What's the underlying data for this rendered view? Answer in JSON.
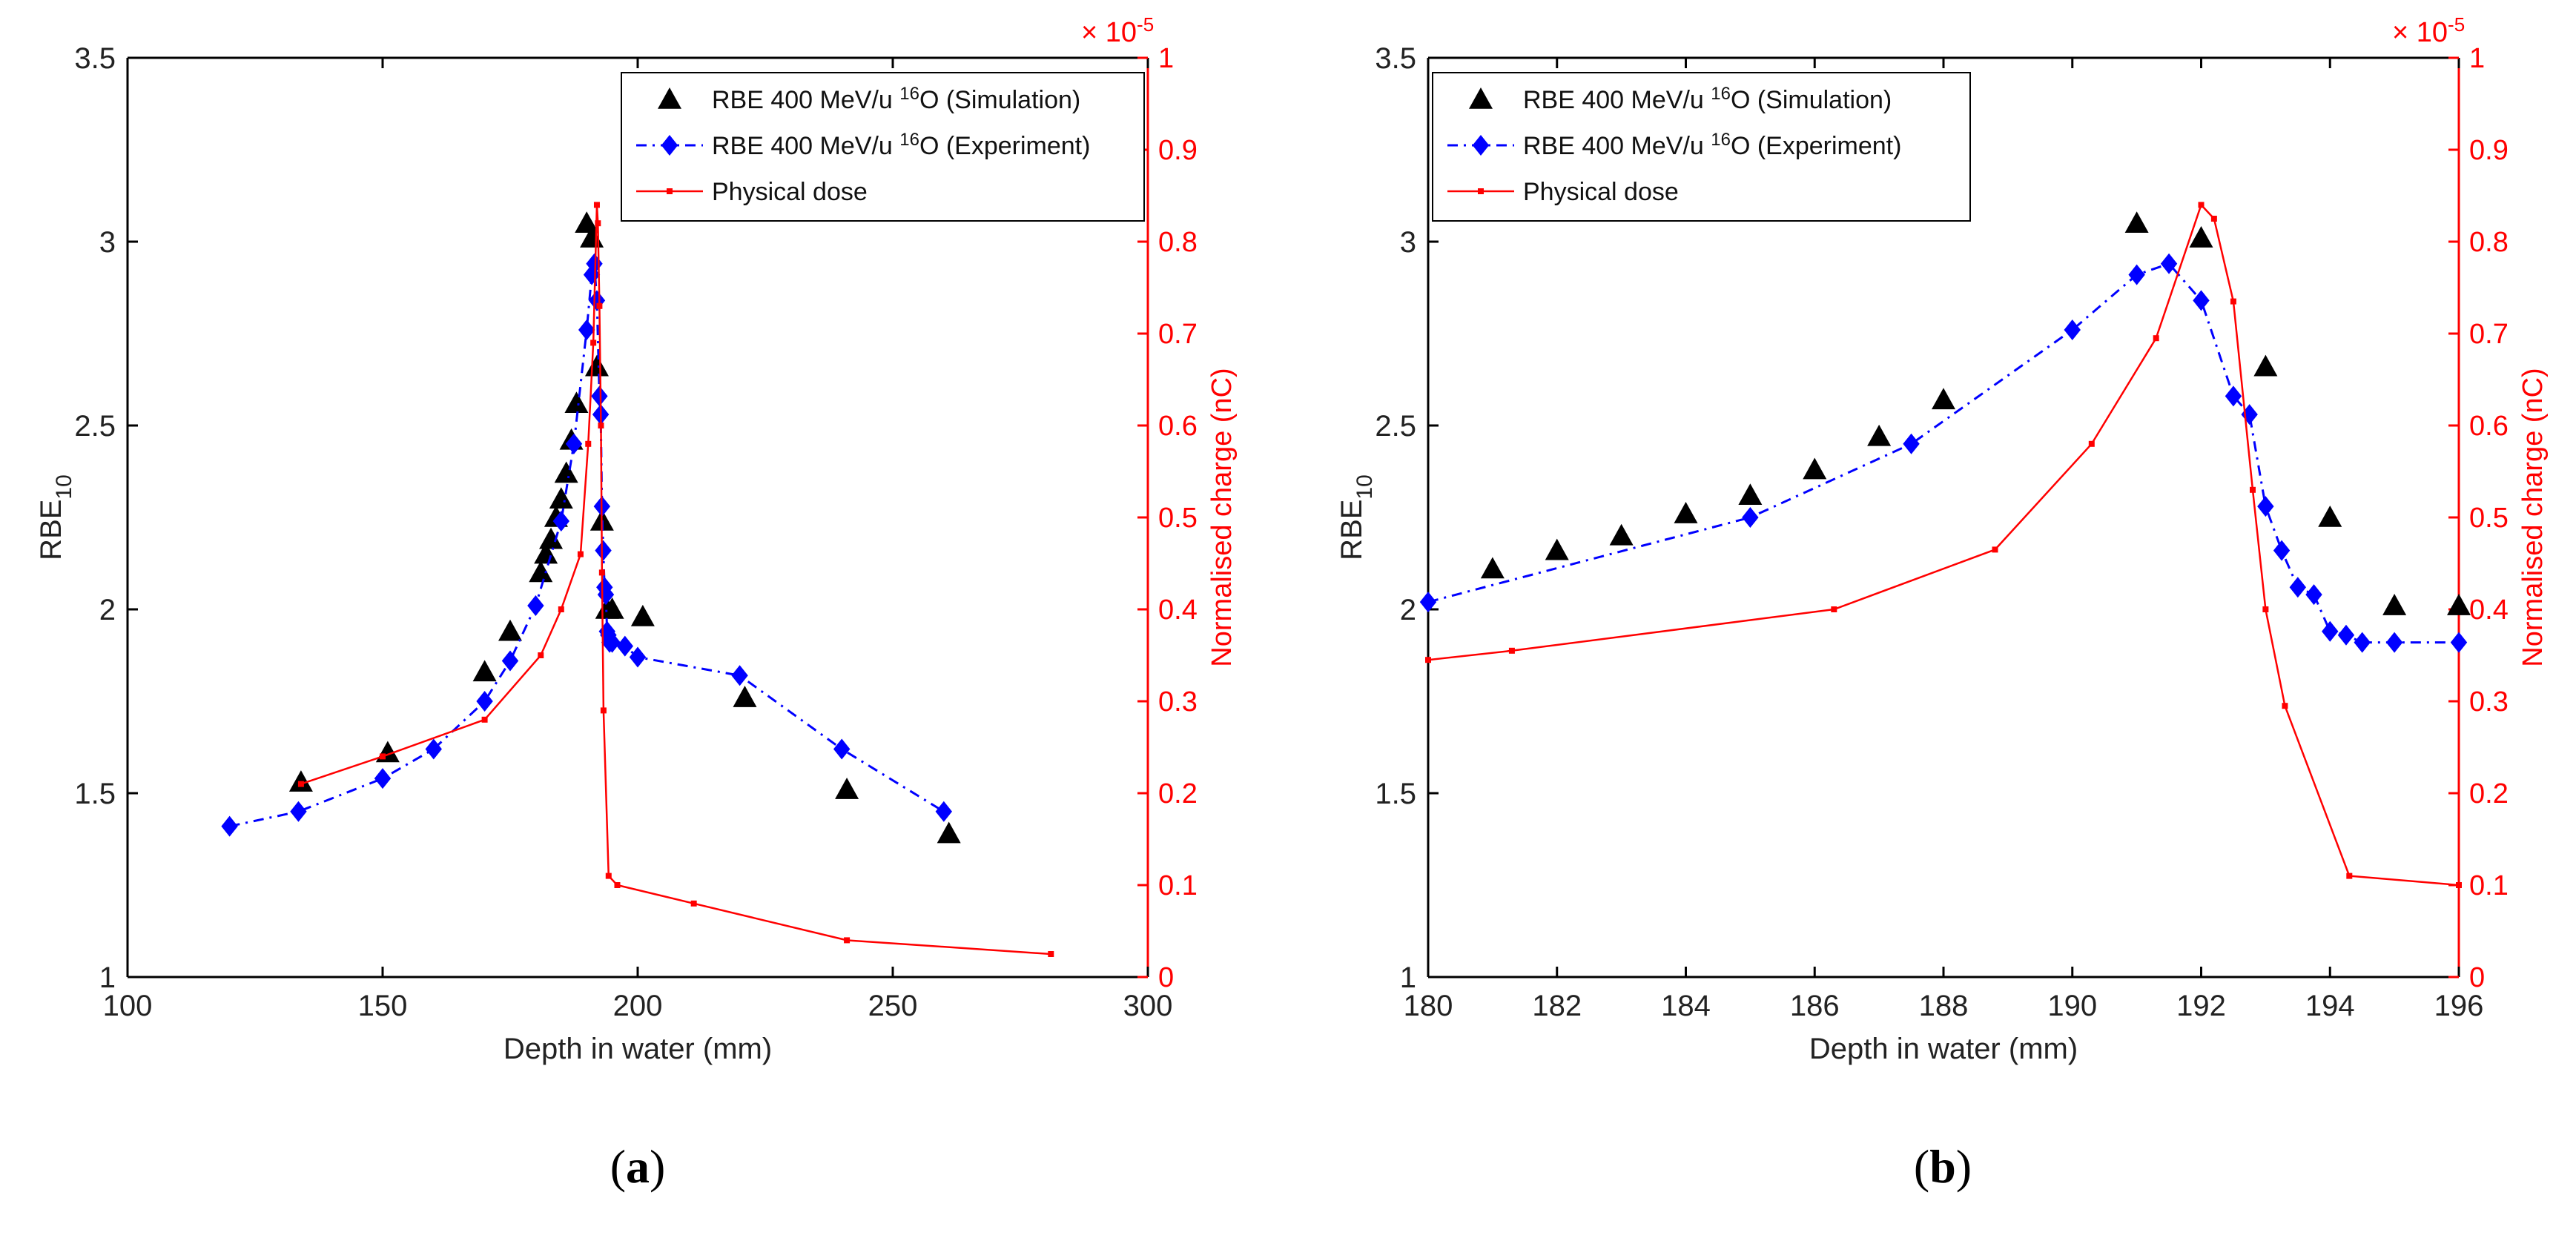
{
  "chart_data": [
    {
      "id": "a",
      "type": "line",
      "caption": "(a)",
      "xlabel": "Depth in water (mm)",
      "ylabel_main": "RBE",
      "ylabel_sub": "10",
      "y2label": "Normalised charge (nC)",
      "y2_exponent_base": "× 10",
      "y2_exponent": "-5",
      "xlim": [
        100,
        300
      ],
      "ylim": [
        1,
        3.5
      ],
      "y2lim": [
        0,
        1
      ],
      "xticks": [
        "100",
        "150",
        "200",
        "250",
        "300"
      ],
      "yticks": [
        "1",
        "1.5",
        "2",
        "2.5",
        "3",
        "3.5"
      ],
      "y2ticks": [
        "0",
        "0.1",
        "0.2",
        "0.3",
        "0.4",
        "0.5",
        "0.6",
        "0.7",
        "0.8",
        "0.9",
        "1"
      ],
      "legend": [
        {
          "text": "RBE 400 MeV/u ",
          "sup": "16",
          "text2": "O (Simulation)"
        },
        {
          "text": "RBE 400 MeV/u ",
          "sup": "16",
          "text2": "O (Experiment)"
        },
        {
          "text": "Physical dose",
          "sup": "",
          "text2": ""
        }
      ],
      "series": [
        {
          "name": "RBE 400 MeV/u 16O (Simulation)",
          "color": "#000000",
          "style": "triangle",
          "x": [
            134,
            151,
            170,
            175,
            181,
            182,
            183,
            184,
            185,
            186,
            187,
            188,
            190,
            191,
            192,
            193,
            194,
            195,
            201,
            221,
            241,
            261
          ],
          "y": [
            1.53,
            1.61,
            1.83,
            1.94,
            2.1,
            2.15,
            2.19,
            2.25,
            2.3,
            2.37,
            2.46,
            2.56,
            3.05,
            3.01,
            2.66,
            2.24,
            2.0,
            2.0,
            1.98,
            1.76,
            1.51,
            1.39
          ]
        },
        {
          "name": "RBE 400 MeV/u 16O (Experiment)",
          "color": "#0000ff",
          "style": "diamond-dashdot",
          "x": [
            120,
            133.5,
            150,
            160,
            170,
            175,
            180,
            185,
            187.5,
            190,
            191,
            191.5,
            192,
            192.5,
            192.75,
            193,
            193.25,
            193.5,
            193.75,
            194,
            194.25,
            194.5,
            195,
            197.5,
            200,
            220,
            240,
            260
          ],
          "y": [
            1.41,
            1.45,
            1.54,
            1.62,
            1.75,
            1.86,
            2.01,
            2.24,
            2.45,
            2.76,
            2.91,
            2.94,
            2.84,
            2.58,
            2.53,
            2.28,
            2.16,
            2.06,
            2.04,
            1.94,
            1.93,
            1.91,
            1.91,
            1.9,
            1.87,
            1.82,
            1.62,
            1.45
          ]
        },
        {
          "name": "Physical dose",
          "color": "#ff0000",
          "style": "line-dot",
          "axis": "y2",
          "x": [
            134,
            150,
            170,
            181,
            185,
            188.8,
            190.3,
            191.3,
            192,
            192.2,
            192.5,
            192.8,
            193.0,
            193.3,
            194.3,
            196,
            211,
            241,
            281
          ],
          "y": [
            0.21,
            0.24,
            0.28,
            0.35,
            0.4,
            0.46,
            0.58,
            0.69,
            0.84,
            0.82,
            0.73,
            0.6,
            0.44,
            0.29,
            0.11,
            0.1,
            0.08,
            0.04,
            0.025
          ]
        }
      ]
    },
    {
      "id": "b",
      "type": "line",
      "caption": "(b)",
      "xlabel": "Depth in water (mm)",
      "ylabel_main": "RBE",
      "ylabel_sub": "10",
      "y2label": "Normalised charge (nC)",
      "y2_exponent_base": "× 10",
      "y2_exponent": "-5",
      "xlim": [
        180,
        196
      ],
      "ylim": [
        1,
        3.5
      ],
      "y2lim": [
        0,
        1
      ],
      "xticks": [
        "180",
        "182",
        "184",
        "186",
        "188",
        "190",
        "192",
        "194",
        "196"
      ],
      "yticks": [
        "1",
        "1.5",
        "2",
        "2.5",
        "3",
        "3.5"
      ],
      "y2ticks": [
        "0",
        "0.1",
        "0.2",
        "0.3",
        "0.4",
        "0.5",
        "0.6",
        "0.7",
        "0.8",
        "0.9",
        "1"
      ],
      "legend": [
        {
          "text": "RBE 400 MeV/u ",
          "sup": "16",
          "text2": "O (Simulation)"
        },
        {
          "text": "RBE 400 MeV/u ",
          "sup": "16",
          "text2": "O (Experiment)"
        },
        {
          "text": "Physical dose",
          "sup": "",
          "text2": ""
        }
      ],
      "series": [
        {
          "name": "RBE 400 MeV/u 16O (Simulation)",
          "color": "#000000",
          "style": "triangle",
          "x": [
            181,
            182,
            183,
            184,
            185,
            186,
            187,
            188,
            191,
            192,
            193,
            194,
            195,
            196
          ],
          "y": [
            2.11,
            2.16,
            2.2,
            2.26,
            2.31,
            2.38,
            2.47,
            2.57,
            3.05,
            3.01,
            2.66,
            2.25,
            2.01,
            2.01
          ]
        },
        {
          "name": "RBE 400 MeV/u 16O (Experiment)",
          "color": "#0000ff",
          "style": "diamond-dashdot",
          "x": [
            180,
            185,
            187.5,
            190,
            191,
            191.5,
            192,
            192.5,
            192.75,
            193,
            193.25,
            193.5,
            193.75,
            194,
            194.25,
            194.5,
            195,
            196
          ],
          "y": [
            2.02,
            2.25,
            2.45,
            2.76,
            2.91,
            2.94,
            2.84,
            2.58,
            2.53,
            2.28,
            2.16,
            2.06,
            2.04,
            1.94,
            1.93,
            1.91,
            1.91,
            1.91
          ]
        },
        {
          "name": "Physical dose",
          "color": "#ff0000",
          "style": "line-dot",
          "axis": "y2",
          "x": [
            180,
            181.3,
            186.3,
            188.8,
            190.3,
            191.3,
            192,
            192.2,
            192.5,
            192.8,
            193.0,
            193.3,
            194.3,
            196
          ],
          "y": [
            0.345,
            0.355,
            0.4,
            0.465,
            0.58,
            0.695,
            0.84,
            0.825,
            0.735,
            0.53,
            0.4,
            0.295,
            0.11,
            0.1
          ]
        }
      ]
    }
  ]
}
